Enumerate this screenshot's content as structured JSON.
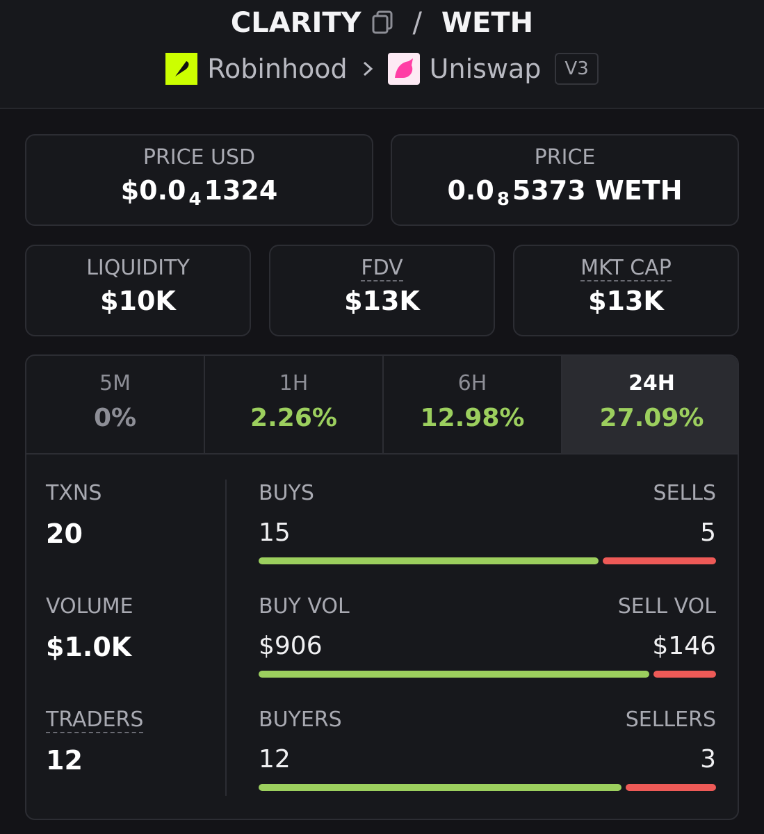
{
  "header": {
    "base": "CLARITY",
    "separator": "/",
    "quote": "WETH",
    "chain": "Robinhood",
    "dex": "Uniswap",
    "version": "V3"
  },
  "price_usd": {
    "label": "PRICE USD",
    "prefix": "$0.0",
    "zeros": "4",
    "digits": "1324"
  },
  "price": {
    "label": "PRICE",
    "prefix": "0.0",
    "zeros": "8",
    "digits": "5373 WETH"
  },
  "metrics": [
    {
      "label": "LIQUIDITY",
      "value": "$10K",
      "dotted": false
    },
    {
      "label": "FDV",
      "value": "$13K",
      "dotted": true
    },
    {
      "label": "MKT CAP",
      "value": "$13K",
      "dotted": true
    }
  ],
  "timeframes": {
    "selected": 3,
    "items": [
      {
        "label": "5M",
        "change": "0%",
        "color": "#8d8e96"
      },
      {
        "label": "1H",
        "change": "2.26%",
        "color": "#9ccf5e"
      },
      {
        "label": "6H",
        "change": "12.98%",
        "color": "#9ccf5e"
      },
      {
        "label": "24H",
        "change": "27.09%",
        "color": "#9ccf5e"
      }
    ]
  },
  "buy_color": "#9ccf5e",
  "sell_color": "#ee5a57",
  "stats": [
    {
      "label": "TXNS",
      "value": 20,
      "dotted": false,
      "buy_label": "BUYS",
      "buy": 15,
      "sell_label": "SELLS",
      "sell": 5
    },
    {
      "label": "VOLUME",
      "value": "$1.0K",
      "dotted": false,
      "buy_label": "BUY VOL",
      "buy": {
        "value": 906,
        "label": "$906"
      },
      "sell_label": "SELL VOL",
      "sell": {
        "value": 146,
        "label": "$146"
      }
    },
    {
      "label": "TRADERS",
      "value": 12,
      "dotted": true,
      "buy_label": "BUYERS",
      "buy": 12,
      "sell_label": "SELLERS",
      "sell": 3
    }
  ]
}
